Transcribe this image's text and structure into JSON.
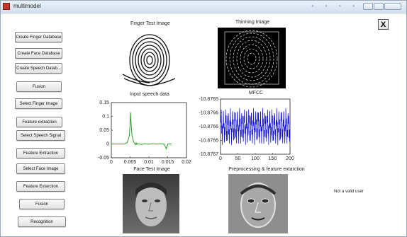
{
  "window": {
    "title": "multimodel",
    "close_glyph": "X"
  },
  "buttons": [
    {
      "id": "create-finger-database",
      "label": "Create Finger Database"
    },
    {
      "id": "create-face-database",
      "label": "Create Face Database"
    },
    {
      "id": "create-speech-database",
      "label": "Create Speech Datab..."
    },
    {
      "id": "fusion-1",
      "label": "Fusion"
    },
    {
      "id": "select-finger-image",
      "label": "Select Finger Image"
    },
    {
      "id": "feature-extraction-1",
      "label": "Feature extraction"
    },
    {
      "id": "select-speech-signal",
      "label": "Select Speech Signal"
    },
    {
      "id": "feature-extraction-2",
      "label": "Feature Extraction"
    },
    {
      "id": "select-face-image",
      "label": "Select Face Image"
    },
    {
      "id": "feature-extraction-3",
      "label": "Feature Extarction"
    },
    {
      "id": "fusion-2",
      "label": "Fusion"
    },
    {
      "id": "recognition",
      "label": "Recognition"
    }
  ],
  "panels": {
    "finger_test": {
      "title": "Finger Test Image"
    },
    "thinning": {
      "title": "Thinning Image"
    },
    "speech": {
      "title": "Input speech data"
    },
    "mfcc": {
      "title": "MFCC"
    },
    "face_test": {
      "title": "Face Test Image"
    },
    "preprocessing": {
      "title": "Preprocessing & feature extarction"
    }
  },
  "status": {
    "text": "Not a valid user"
  },
  "colors": {
    "speech_line": "#2ca02c",
    "mfcc_line": "#1010d8"
  },
  "chart_data": [
    {
      "type": "line",
      "title": "Input speech data",
      "xlim": [
        0,
        0.02
      ],
      "ylim": [
        -0.05,
        0.15
      ],
      "xticks": [
        "0",
        "0.005",
        "0.01",
        "0.015",
        "0.02"
      ],
      "yticks": [
        "-0.05",
        "0",
        "0.05",
        "0.1",
        "0.15"
      ],
      "series": [
        {
          "x": [
            0,
            0.0035,
            0.0042,
            0.0046,
            0.0048,
            0.005,
            0.0051,
            0.0052,
            0.0055,
            0.006,
            0.0064,
            0.0066,
            0.0068,
            0.007,
            0.0072,
            0.008,
            0.009,
            0.01,
            0.011,
            0.012,
            0.013,
            0.014,
            0.0144,
            0.0146,
            0.0148,
            0.015,
            0.016
          ],
          "y": [
            0,
            0,
            0.005,
            0.02,
            0.03,
            0.075,
            0.115,
            0.085,
            0.03,
            0.005,
            -0.003,
            0.005,
            -0.002,
            0.002,
            0,
            -0.002,
            0.001,
            -0.001,
            0.001,
            0,
            0.001,
            0,
            -0.01,
            -0.018,
            -0.01,
            0,
            0
          ]
        }
      ]
    },
    {
      "type": "line",
      "title": "MFCC",
      "xlim": [
        0,
        200
      ],
      "ylim": [
        -10.8767,
        -10.8765
      ],
      "xticks": [
        "0",
        "50",
        "100",
        "150",
        "200"
      ],
      "yticks": [
        "-10.8765",
        "-10.8766",
        "-10.8766",
        "-10.8766",
        "-10.8767"
      ],
      "series": [
        {
          "y_min": -10.87667,
          "y_max": -10.87653,
          "points": 200,
          "cycles": 30
        }
      ]
    }
  ]
}
